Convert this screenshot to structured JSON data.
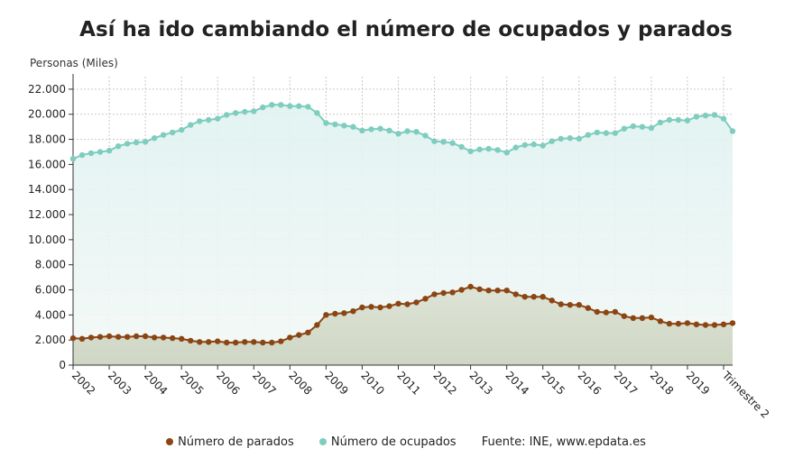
{
  "chart_data": {
    "type": "area",
    "title": "Así ha ido cambiando el número de ocupados y parados",
    "ylabel": "Personas (Miles)",
    "ylim": [
      0,
      23000
    ],
    "yticks": [
      0,
      2000,
      4000,
      6000,
      8000,
      10000,
      12000,
      14000,
      16000,
      18000,
      20000,
      22000
    ],
    "ytick_labels": [
      "0",
      "2.000",
      "4.000",
      "6.000",
      "8.000",
      "10.000",
      "12.000",
      "14.000",
      "16.000",
      "18.000",
      "20.000",
      "22.000"
    ],
    "xtick_labels": [
      "2002",
      "2003",
      "2004",
      "2005",
      "2006",
      "2007",
      "2008",
      "2009",
      "2010",
      "2011",
      "2012",
      "2013",
      "2014",
      "2015",
      "2016",
      "2017",
      "2018",
      "2019",
      "Trimestre 2"
    ],
    "grid": true,
    "legend_position": "bottom",
    "source": "Fuente: INE, www.epdata.es",
    "series": [
      {
        "name": "Número de parados",
        "color": "#8b4513",
        "values": [
          2150,
          2100,
          2200,
          2250,
          2300,
          2250,
          2250,
          2300,
          2300,
          2200,
          2200,
          2150,
          2100,
          1950,
          1850,
          1850,
          1900,
          1800,
          1800,
          1850,
          1850,
          1800,
          1800,
          1900,
          2200,
          2400,
          2600,
          3200,
          4000,
          4100,
          4150,
          4300,
          4600,
          4650,
          4600,
          4700,
          4900,
          4850,
          5000,
          5300,
          5650,
          5750,
          5800,
          6000,
          6250,
          6050,
          5950,
          5950,
          5950,
          5650,
          5450,
          5450,
          5450,
          5150,
          4850,
          4800,
          4800,
          4550,
          4250,
          4200,
          4250,
          3900,
          3750,
          3750,
          3800,
          3500,
          3300,
          3300,
          3350,
          3250,
          3200,
          3200,
          3250,
          3350
        ]
      },
      {
        "name": "Número de ocupados",
        "color": "#7ecdbe",
        "values": [
          16450,
          16750,
          16900,
          17000,
          17100,
          17450,
          17650,
          17750,
          17800,
          18100,
          18350,
          18550,
          18750,
          19150,
          19450,
          19550,
          19650,
          19950,
          20100,
          20200,
          20250,
          20550,
          20750,
          20750,
          20650,
          20650,
          20600,
          20100,
          19300,
          19200,
          19100,
          19000,
          18700,
          18800,
          18850,
          18700,
          18450,
          18650,
          18600,
          18300,
          17850,
          17800,
          17700,
          17400,
          17050,
          17200,
          17250,
          17150,
          16950,
          17350,
          17550,
          17600,
          17500,
          17850,
          18050,
          18100,
          18050,
          18350,
          18550,
          18500,
          18500,
          18850,
          19050,
          19000,
          18900,
          19350,
          19550,
          19550,
          19500,
          19800,
          19900,
          19950,
          19650,
          18650
        ]
      }
    ]
  }
}
